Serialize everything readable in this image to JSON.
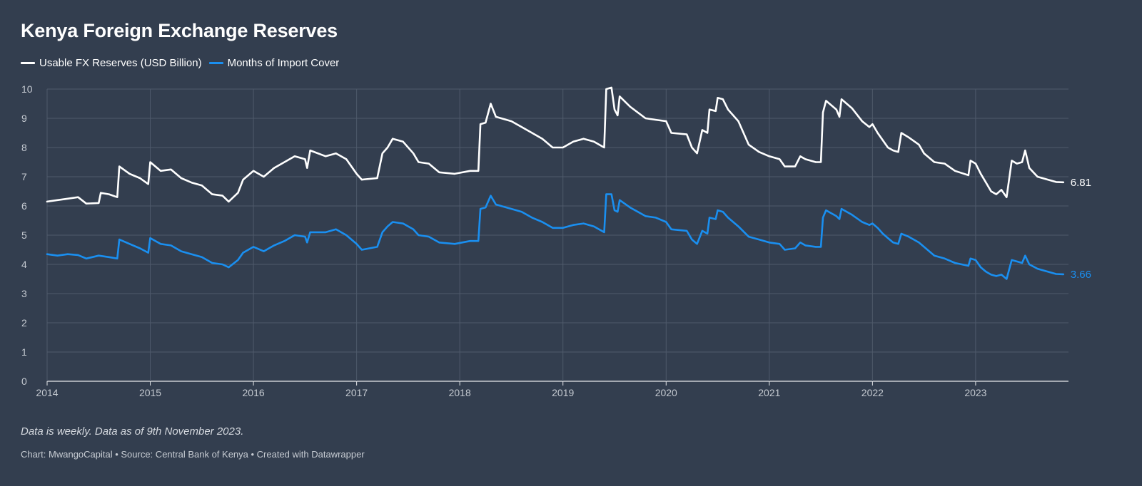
{
  "chart_data": {
    "type": "line",
    "title": "Kenya Foreign Exchange Reserves",
    "xlabel": "",
    "ylabel": "",
    "ylim": [
      0,
      10
    ],
    "xlim": [
      2014.0,
      2023.9
    ],
    "y_ticks": [
      "0",
      "1",
      "2",
      "3",
      "4",
      "5",
      "6",
      "7",
      "8",
      "9",
      "10"
    ],
    "x_ticks": [
      "2014",
      "2015",
      "2016",
      "2017",
      "2018",
      "2019",
      "2020",
      "2021",
      "2022",
      "2023"
    ],
    "grid": true,
    "legend_position": "top-left",
    "series": [
      {
        "name": "Usable FX Reserves (USD Billion)",
        "color": "#ffffff",
        "end_label": "6.81",
        "points": [
          [
            2014.0,
            6.15
          ],
          [
            2014.1,
            6.2
          ],
          [
            2014.2,
            6.25
          ],
          [
            2014.3,
            6.3
          ],
          [
            2014.38,
            6.08
          ],
          [
            2014.5,
            6.1
          ],
          [
            2014.52,
            6.45
          ],
          [
            2014.6,
            6.4
          ],
          [
            2014.68,
            6.3
          ],
          [
            2014.7,
            7.35
          ],
          [
            2014.8,
            7.1
          ],
          [
            2014.9,
            6.95
          ],
          [
            2014.98,
            6.75
          ],
          [
            2015.0,
            7.5
          ],
          [
            2015.1,
            7.2
          ],
          [
            2015.2,
            7.25
          ],
          [
            2015.3,
            6.95
          ],
          [
            2015.4,
            6.8
          ],
          [
            2015.5,
            6.7
          ],
          [
            2015.6,
            6.4
          ],
          [
            2015.7,
            6.35
          ],
          [
            2015.76,
            6.15
          ],
          [
            2015.85,
            6.45
          ],
          [
            2015.9,
            6.9
          ],
          [
            2016.0,
            7.2
          ],
          [
            2016.1,
            7.0
          ],
          [
            2016.2,
            7.3
          ],
          [
            2016.3,
            7.5
          ],
          [
            2016.4,
            7.7
          ],
          [
            2016.5,
            7.6
          ],
          [
            2016.52,
            7.3
          ],
          [
            2016.55,
            7.9
          ],
          [
            2016.7,
            7.7
          ],
          [
            2016.8,
            7.8
          ],
          [
            2016.9,
            7.6
          ],
          [
            2017.0,
            7.1
          ],
          [
            2017.05,
            6.9
          ],
          [
            2017.2,
            6.95
          ],
          [
            2017.25,
            7.8
          ],
          [
            2017.3,
            8.0
          ],
          [
            2017.35,
            8.3
          ],
          [
            2017.45,
            8.2
          ],
          [
            2017.55,
            7.8
          ],
          [
            2017.6,
            7.5
          ],
          [
            2017.7,
            7.45
          ],
          [
            2017.8,
            7.15
          ],
          [
            2017.95,
            7.1
          ],
          [
            2018.1,
            7.2
          ],
          [
            2018.18,
            7.2
          ],
          [
            2018.2,
            8.8
          ],
          [
            2018.25,
            8.85
          ],
          [
            2018.3,
            9.5
          ],
          [
            2018.35,
            9.05
          ],
          [
            2018.5,
            8.9
          ],
          [
            2018.6,
            8.7
          ],
          [
            2018.7,
            8.5
          ],
          [
            2018.8,
            8.3
          ],
          [
            2018.9,
            8.0
          ],
          [
            2019.0,
            8.0
          ],
          [
            2019.1,
            8.2
          ],
          [
            2019.2,
            8.3
          ],
          [
            2019.3,
            8.2
          ],
          [
            2019.4,
            8.0
          ],
          [
            2019.42,
            10.0
          ],
          [
            2019.47,
            10.05
          ],
          [
            2019.5,
            9.3
          ],
          [
            2019.53,
            9.1
          ],
          [
            2019.55,
            9.75
          ],
          [
            2019.65,
            9.4
          ],
          [
            2019.8,
            9.0
          ],
          [
            2019.9,
            8.95
          ],
          [
            2020.0,
            8.9
          ],
          [
            2020.05,
            8.5
          ],
          [
            2020.2,
            8.45
          ],
          [
            2020.25,
            8.0
          ],
          [
            2020.3,
            7.8
          ],
          [
            2020.35,
            8.6
          ],
          [
            2020.4,
            8.5
          ],
          [
            2020.42,
            9.3
          ],
          [
            2020.48,
            9.25
          ],
          [
            2020.5,
            9.7
          ],
          [
            2020.55,
            9.65
          ],
          [
            2020.6,
            9.3
          ],
          [
            2020.7,
            8.9
          ],
          [
            2020.8,
            8.1
          ],
          [
            2020.9,
            7.85
          ],
          [
            2021.0,
            7.7
          ],
          [
            2021.1,
            7.6
          ],
          [
            2021.15,
            7.35
          ],
          [
            2021.25,
            7.35
          ],
          [
            2021.3,
            7.7
          ],
          [
            2021.35,
            7.6
          ],
          [
            2021.45,
            7.5
          ],
          [
            2021.5,
            7.5
          ],
          [
            2021.52,
            9.2
          ],
          [
            2021.55,
            9.6
          ],
          [
            2021.65,
            9.3
          ],
          [
            2021.68,
            9.05
          ],
          [
            2021.7,
            9.65
          ],
          [
            2021.8,
            9.35
          ],
          [
            2021.9,
            8.9
          ],
          [
            2021.97,
            8.7
          ],
          [
            2022.0,
            8.8
          ],
          [
            2022.05,
            8.5
          ],
          [
            2022.1,
            8.25
          ],
          [
            2022.15,
            8.0
          ],
          [
            2022.2,
            7.9
          ],
          [
            2022.25,
            7.85
          ],
          [
            2022.28,
            8.5
          ],
          [
            2022.35,
            8.35
          ],
          [
            2022.45,
            8.1
          ],
          [
            2022.5,
            7.8
          ],
          [
            2022.6,
            7.5
          ],
          [
            2022.7,
            7.45
          ],
          [
            2022.8,
            7.2
          ],
          [
            2022.93,
            7.05
          ],
          [
            2022.95,
            7.55
          ],
          [
            2023.0,
            7.45
          ],
          [
            2023.05,
            7.1
          ],
          [
            2023.1,
            6.8
          ],
          [
            2023.15,
            6.5
          ],
          [
            2023.2,
            6.4
          ],
          [
            2023.25,
            6.55
          ],
          [
            2023.3,
            6.3
          ],
          [
            2023.35,
            7.55
          ],
          [
            2023.4,
            7.45
          ],
          [
            2023.45,
            7.5
          ],
          [
            2023.48,
            7.9
          ],
          [
            2023.52,
            7.3
          ],
          [
            2023.6,
            7.0
          ],
          [
            2023.7,
            6.9
          ],
          [
            2023.78,
            6.82
          ],
          [
            2023.85,
            6.81
          ]
        ]
      },
      {
        "name": "Months of Import Cover",
        "color": "#1a8ff0",
        "end_label": "3.66",
        "points": [
          [
            2014.0,
            4.35
          ],
          [
            2014.1,
            4.3
          ],
          [
            2014.2,
            4.35
          ],
          [
            2014.3,
            4.32
          ],
          [
            2014.38,
            4.2
          ],
          [
            2014.5,
            4.3
          ],
          [
            2014.6,
            4.25
          ],
          [
            2014.68,
            4.2
          ],
          [
            2014.7,
            4.85
          ],
          [
            2014.8,
            4.7
          ],
          [
            2014.9,
            4.55
          ],
          [
            2014.98,
            4.4
          ],
          [
            2015.0,
            4.9
          ],
          [
            2015.1,
            4.7
          ],
          [
            2015.2,
            4.65
          ],
          [
            2015.3,
            4.45
          ],
          [
            2015.4,
            4.35
          ],
          [
            2015.5,
            4.25
          ],
          [
            2015.6,
            4.05
          ],
          [
            2015.7,
            4.0
          ],
          [
            2015.76,
            3.9
          ],
          [
            2015.85,
            4.15
          ],
          [
            2015.9,
            4.4
          ],
          [
            2016.0,
            4.6
          ],
          [
            2016.1,
            4.45
          ],
          [
            2016.2,
            4.65
          ],
          [
            2016.3,
            4.8
          ],
          [
            2016.4,
            5.0
          ],
          [
            2016.5,
            4.95
          ],
          [
            2016.52,
            4.75
          ],
          [
            2016.55,
            5.1
          ],
          [
            2016.7,
            5.1
          ],
          [
            2016.8,
            5.2
          ],
          [
            2016.9,
            5.0
          ],
          [
            2017.0,
            4.7
          ],
          [
            2017.05,
            4.5
          ],
          [
            2017.2,
            4.6
          ],
          [
            2017.25,
            5.1
          ],
          [
            2017.3,
            5.3
          ],
          [
            2017.35,
            5.45
          ],
          [
            2017.45,
            5.4
          ],
          [
            2017.55,
            5.2
          ],
          [
            2017.6,
            5.0
          ],
          [
            2017.7,
            4.95
          ],
          [
            2017.8,
            4.75
          ],
          [
            2017.95,
            4.7
          ],
          [
            2018.1,
            4.8
          ],
          [
            2018.18,
            4.8
          ],
          [
            2018.2,
            5.9
          ],
          [
            2018.25,
            5.95
          ],
          [
            2018.3,
            6.35
          ],
          [
            2018.35,
            6.05
          ],
          [
            2018.5,
            5.9
          ],
          [
            2018.6,
            5.8
          ],
          [
            2018.7,
            5.6
          ],
          [
            2018.8,
            5.45
          ],
          [
            2018.9,
            5.25
          ],
          [
            2019.0,
            5.25
          ],
          [
            2019.1,
            5.35
          ],
          [
            2019.2,
            5.4
          ],
          [
            2019.3,
            5.3
          ],
          [
            2019.4,
            5.1
          ],
          [
            2019.42,
            6.4
          ],
          [
            2019.47,
            6.4
          ],
          [
            2019.5,
            5.85
          ],
          [
            2019.53,
            5.8
          ],
          [
            2019.55,
            6.2
          ],
          [
            2019.65,
            5.95
          ],
          [
            2019.8,
            5.65
          ],
          [
            2019.9,
            5.6
          ],
          [
            2020.0,
            5.45
          ],
          [
            2020.05,
            5.2
          ],
          [
            2020.2,
            5.15
          ],
          [
            2020.25,
            4.85
          ],
          [
            2020.3,
            4.7
          ],
          [
            2020.35,
            5.15
          ],
          [
            2020.4,
            5.05
          ],
          [
            2020.42,
            5.6
          ],
          [
            2020.48,
            5.55
          ],
          [
            2020.5,
            5.85
          ],
          [
            2020.55,
            5.8
          ],
          [
            2020.6,
            5.6
          ],
          [
            2020.7,
            5.3
          ],
          [
            2020.8,
            4.95
          ],
          [
            2020.9,
            4.85
          ],
          [
            2021.0,
            4.75
          ],
          [
            2021.1,
            4.7
          ],
          [
            2021.15,
            4.5
          ],
          [
            2021.25,
            4.55
          ],
          [
            2021.3,
            4.75
          ],
          [
            2021.35,
            4.65
          ],
          [
            2021.45,
            4.6
          ],
          [
            2021.5,
            4.6
          ],
          [
            2021.52,
            5.6
          ],
          [
            2021.55,
            5.85
          ],
          [
            2021.65,
            5.65
          ],
          [
            2021.68,
            5.55
          ],
          [
            2021.7,
            5.9
          ],
          [
            2021.8,
            5.7
          ],
          [
            2021.9,
            5.45
          ],
          [
            2021.97,
            5.35
          ],
          [
            2022.0,
            5.4
          ],
          [
            2022.05,
            5.25
          ],
          [
            2022.1,
            5.05
          ],
          [
            2022.15,
            4.9
          ],
          [
            2022.2,
            4.75
          ],
          [
            2022.25,
            4.7
          ],
          [
            2022.28,
            5.05
          ],
          [
            2022.35,
            4.95
          ],
          [
            2022.45,
            4.75
          ],
          [
            2022.5,
            4.6
          ],
          [
            2022.6,
            4.3
          ],
          [
            2022.7,
            4.2
          ],
          [
            2022.8,
            4.05
          ],
          [
            2022.93,
            3.95
          ],
          [
            2022.95,
            4.2
          ],
          [
            2023.0,
            4.15
          ],
          [
            2023.05,
            3.9
          ],
          [
            2023.1,
            3.75
          ],
          [
            2023.15,
            3.65
          ],
          [
            2023.2,
            3.6
          ],
          [
            2023.25,
            3.65
          ],
          [
            2023.3,
            3.5
          ],
          [
            2023.35,
            4.15
          ],
          [
            2023.4,
            4.1
          ],
          [
            2023.45,
            4.05
          ],
          [
            2023.48,
            4.3
          ],
          [
            2023.52,
            4.0
          ],
          [
            2023.6,
            3.85
          ],
          [
            2023.7,
            3.75
          ],
          [
            2023.78,
            3.67
          ],
          [
            2023.85,
            3.66
          ]
        ]
      }
    ]
  },
  "footer": {
    "note": "Data is weekly. Data as of 9th November 2023.",
    "source": "Chart: MwangoCapital • Source: Central Bank of Kenya • Created with Datawrapper"
  }
}
